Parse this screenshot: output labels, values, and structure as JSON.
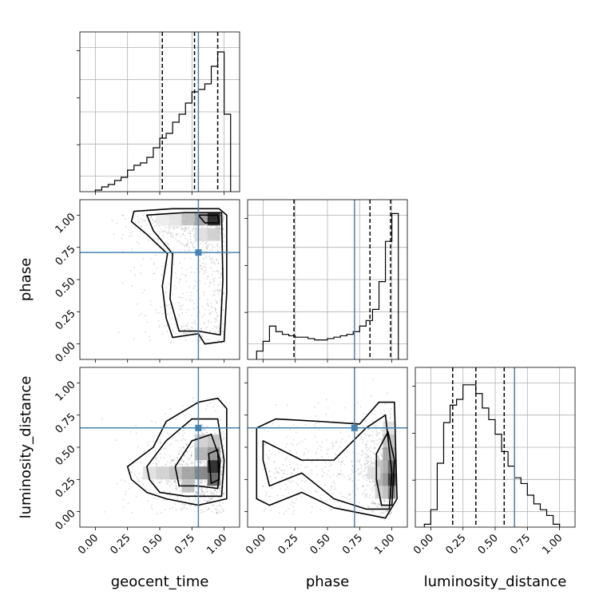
{
  "chart_data": {
    "type": "corner",
    "parameters": [
      "geocent_time",
      "phase",
      "luminosity_distance"
    ],
    "tick_labels": [
      "0.00",
      "0.25",
      "0.50",
      "0.75",
      "1.00"
    ],
    "ticks": [
      0,
      0.25,
      0.5,
      0.75,
      1.0
    ],
    "lim": [
      -0.12,
      1.12
    ],
    "truths": {
      "geocent_time": 0.8,
      "phase": 0.71,
      "luminosity_distance": 0.65
    },
    "colors": {
      "truth": "#4682b4",
      "line": "#000000",
      "grid": "#b0b0b0"
    },
    "grid": true,
    "histograms": {
      "geocent_time": {
        "bins_x": [
          0.0,
          0.05,
          0.1,
          0.15,
          0.2,
          0.25,
          0.3,
          0.35,
          0.4,
          0.45,
          0.5,
          0.55,
          0.6,
          0.65,
          0.7,
          0.75,
          0.8,
          0.85,
          0.9,
          0.95,
          1.0,
          1.05
        ],
        "counts": [
          0.2,
          0.6,
          0.9,
          1.4,
          1.8,
          2.7,
          3.3,
          3.6,
          4.3,
          5.5,
          6.7,
          7.3,
          8.7,
          9.7,
          11.1,
          12.5,
          12.8,
          13.5,
          15.7,
          17.5,
          9.7
        ],
        "quantile_lines": [
          0.52,
          0.77,
          0.95
        ],
        "ymax": 20
      },
      "phase": {
        "bins_x": [
          -0.05,
          0.0,
          0.05,
          0.1,
          0.15,
          0.2,
          0.25,
          0.3,
          0.35,
          0.4,
          0.45,
          0.5,
          0.55,
          0.6,
          0.65,
          0.7,
          0.75,
          0.8,
          0.85,
          0.9,
          0.95,
          1.0,
          1.05
        ],
        "counts": [
          0.6,
          1.3,
          2.4,
          2.0,
          1.8,
          1.7,
          1.6,
          1.6,
          1.5,
          1.4,
          1.4,
          1.5,
          1.6,
          1.7,
          1.8,
          2.0,
          2.4,
          2.8,
          3.6,
          5.6,
          8.5,
          10.5
        ],
        "quantile_lines": [
          0.24,
          0.83,
          0.99
        ],
        "ymax": 11.5
      },
      "luminosity_distance": {
        "bins_x": [
          -0.05,
          0.0,
          0.05,
          0.1,
          0.15,
          0.2,
          0.25,
          0.3,
          0.35,
          0.4,
          0.45,
          0.5,
          0.55,
          0.6,
          0.65,
          0.7,
          0.75,
          0.8,
          0.85,
          0.9,
          0.95,
          1.0
        ],
        "counts": [
          0.1,
          0.6,
          2.2,
          3.6,
          4.2,
          4.4,
          4.9,
          4.9,
          4.6,
          4.1,
          3.7,
          3.2,
          2.6,
          2.1,
          1.7,
          1.5,
          1.1,
          0.8,
          0.6,
          0.4,
          0.1
        ],
        "quantile_lines": [
          0.17,
          0.35,
          0.57
        ],
        "ymax": 5.5
      }
    },
    "panels": [
      {
        "x": "geocent_time",
        "y": "phase"
      },
      {
        "x": "geocent_time",
        "y": "luminosity_distance"
      },
      {
        "x": "phase",
        "y": "luminosity_distance"
      }
    ]
  }
}
